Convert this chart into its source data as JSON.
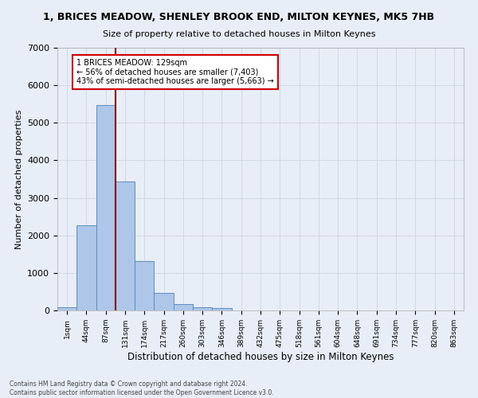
{
  "title": "1, BRICES MEADOW, SHENLEY BROOK END, MILTON KEYNES, MK5 7HB",
  "subtitle": "Size of property relative to detached houses in Milton Keynes",
  "xlabel": "Distribution of detached houses by size in Milton Keynes",
  "ylabel": "Number of detached properties",
  "categories": [
    "1sqm",
    "44sqm",
    "87sqm",
    "131sqm",
    "174sqm",
    "217sqm",
    "260sqm",
    "303sqm",
    "346sqm",
    "389sqm",
    "432sqm",
    "475sqm",
    "518sqm",
    "561sqm",
    "604sqm",
    "648sqm",
    "691sqm",
    "734sqm",
    "777sqm",
    "820sqm",
    "863sqm"
  ],
  "bar_heights": [
    80,
    2280,
    5480,
    3440,
    1310,
    470,
    160,
    90,
    55,
    0,
    0,
    0,
    0,
    0,
    0,
    0,
    0,
    0,
    0,
    0,
    0
  ],
  "bar_color": "#aec6e8",
  "bar_edge_color": "#5a8fc2",
  "vline_color": "#8b0000",
  "annotation_line1": "1 BRICES MEADOW: 129sqm",
  "annotation_line2": "← 56% of detached houses are smaller (7,403)",
  "annotation_line3": "43% of semi-detached houses are larger (5,663) →",
  "annotation_box_color": "#ffffff",
  "annotation_box_edge_color": "#cc0000",
  "ylim": [
    0,
    7000
  ],
  "yticks": [
    0,
    1000,
    2000,
    3000,
    4000,
    5000,
    6000,
    7000
  ],
  "grid_color": "#d0d8e8",
  "bg_color": "#e8eef7",
  "footer_line1": "Contains HM Land Registry data © Crown copyright and database right 2024.",
  "footer_line2": "Contains public sector information licensed under the Open Government Licence v3.0."
}
